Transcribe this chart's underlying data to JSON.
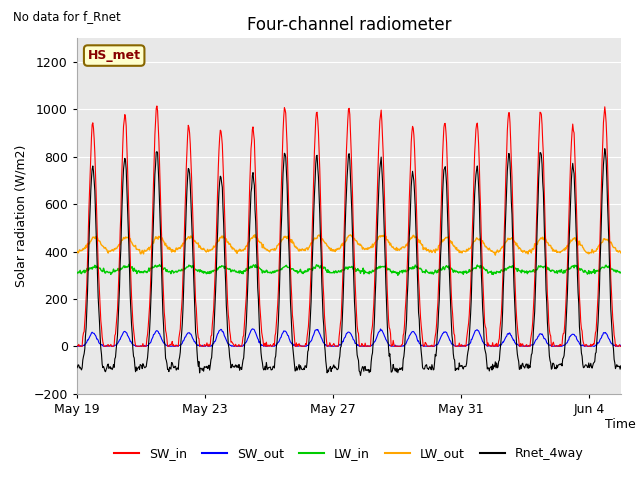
{
  "title": "Four-channel radiometer",
  "top_left_text": "No data for f_Rnet",
  "station_label": "HS_met",
  "ylabel": "Solar radiation (W/m2)",
  "xlabel": "Time",
  "ylim": [
    -200,
    1300
  ],
  "yticks": [
    -200,
    0,
    200,
    400,
    600,
    800,
    1000,
    1200
  ],
  "xtick_labels": [
    "May 19",
    "May 23",
    "May 27",
    "May 31",
    "Jun 4"
  ],
  "xtick_positions": [
    0,
    4,
    8,
    12,
    16
  ],
  "colors": {
    "SW_in": "#ff0000",
    "SW_out": "#0000ff",
    "LW_in": "#00cc00",
    "LW_out": "#ffa500",
    "Rnet_4way": "#000000"
  },
  "legend_entries": [
    "SW_in",
    "SW_out",
    "LW_in",
    "LW_out",
    "Rnet_4way"
  ],
  "n_days": 17,
  "fig_bg_color": "#ffffff",
  "plot_bg_color": "#e8e8e8"
}
